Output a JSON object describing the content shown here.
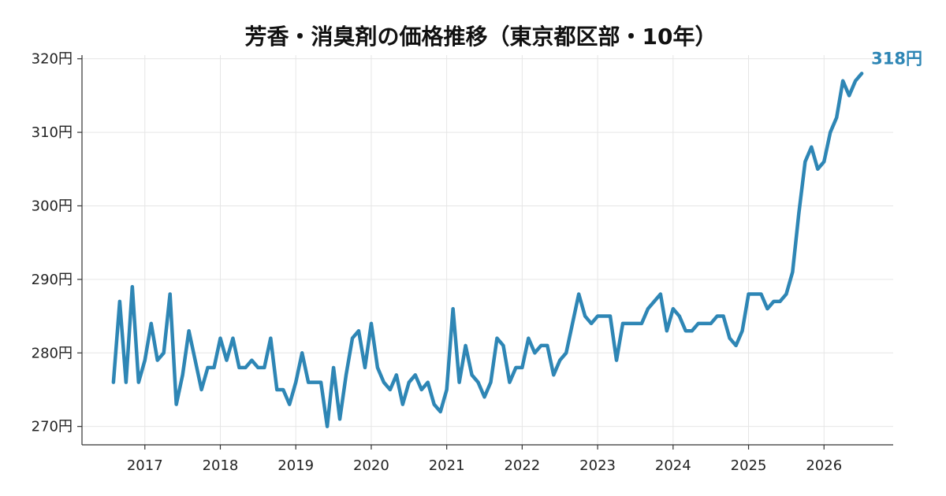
{
  "chart_data": {
    "type": "line",
    "title": "芳香・消臭剤の価格推移（東京都区部・10年）",
    "xlabel": "",
    "ylabel": "",
    "y_tick_labels": [
      "270円",
      "280円",
      "290円",
      "300円",
      "310円",
      "320円"
    ],
    "y_ticks": [
      270,
      280,
      290,
      300,
      310,
      320
    ],
    "ylim": [
      267.5,
      320.5
    ],
    "x_tick_labels": [
      "2017",
      "2018",
      "2019",
      "2020",
      "2021",
      "2022",
      "2023",
      "2024",
      "2025",
      "2026"
    ],
    "x_ticks": [
      "2017-01",
      "2018-01",
      "2019-01",
      "2020-01",
      "2021-01",
      "2022-01",
      "2023-01",
      "2024-01",
      "2025-01",
      "2026-01"
    ],
    "xlim": [
      "2016-03",
      "2026-12"
    ],
    "grid": true,
    "line_color": "#2e86b5",
    "end_label": "318円",
    "x": [
      "2016-08",
      "2016-09",
      "2016-10",
      "2016-11",
      "2016-12",
      "2017-01",
      "2017-02",
      "2017-03",
      "2017-04",
      "2017-05",
      "2017-06",
      "2017-07",
      "2017-08",
      "2017-09",
      "2017-10",
      "2017-11",
      "2017-12",
      "2018-01",
      "2018-02",
      "2018-03",
      "2018-04",
      "2018-05",
      "2018-06",
      "2018-07",
      "2018-08",
      "2018-09",
      "2018-10",
      "2018-11",
      "2018-12",
      "2019-01",
      "2019-02",
      "2019-03",
      "2019-04",
      "2019-05",
      "2019-06",
      "2019-07",
      "2019-08",
      "2019-09",
      "2019-10",
      "2019-11",
      "2019-12",
      "2020-01",
      "2020-02",
      "2020-03",
      "2020-04",
      "2020-05",
      "2020-06",
      "2020-07",
      "2020-08",
      "2020-09",
      "2020-10",
      "2020-11",
      "2020-12",
      "2021-01",
      "2021-02",
      "2021-03",
      "2021-04",
      "2021-05",
      "2021-06",
      "2021-07",
      "2021-08",
      "2021-09",
      "2021-10",
      "2021-11",
      "2021-12",
      "2022-01",
      "2022-02",
      "2022-03",
      "2022-04",
      "2022-05",
      "2022-06",
      "2022-07",
      "2022-08",
      "2022-09",
      "2022-10",
      "2022-11",
      "2022-12",
      "2023-01",
      "2023-02",
      "2023-03",
      "2023-04",
      "2023-05",
      "2023-06",
      "2023-07",
      "2023-08",
      "2023-09",
      "2023-10",
      "2023-11",
      "2023-12",
      "2024-01",
      "2024-02",
      "2024-03",
      "2024-04",
      "2024-05",
      "2024-06",
      "2024-07",
      "2024-08",
      "2024-09",
      "2024-10",
      "2024-11",
      "2024-12",
      "2025-01",
      "2025-02",
      "2025-03",
      "2025-04",
      "2025-05",
      "2025-06",
      "2025-07",
      "2025-08",
      "2025-09",
      "2025-10",
      "2025-11",
      "2025-12",
      "2026-01",
      "2026-02",
      "2026-03",
      "2026-04",
      "2026-05",
      "2026-06",
      "2026-07"
    ],
    "series": [
      {
        "values": [
          276,
          287,
          276,
          289,
          276,
          279,
          284,
          279,
          280,
          288,
          273,
          277,
          283,
          279,
          275,
          278,
          278,
          282,
          279,
          282,
          278,
          278,
          279,
          278,
          278,
          282,
          275,
          275,
          273,
          276,
          280,
          276,
          276,
          276,
          270,
          278,
          271,
          277,
          282,
          283,
          278,
          284,
          278,
          276,
          275,
          277,
          273,
          276,
          277,
          275,
          276,
          273,
          272,
          275,
          286,
          276,
          281,
          277,
          276,
          274,
          276,
          282,
          281,
          276,
          278,
          278,
          282,
          280,
          281,
          281,
          277,
          279,
          280,
          284,
          288,
          285,
          284,
          285,
          285,
          285,
          279,
          284,
          284,
          284,
          284,
          286,
          287,
          288,
          283,
          286,
          285,
          283,
          283,
          284,
          284,
          284,
          285,
          285,
          282,
          281,
          283,
          288,
          288,
          288,
          286,
          287,
          287,
          288,
          291,
          299,
          306,
          308,
          305,
          306,
          310,
          312,
          317,
          315,
          317,
          318
        ]
      }
    ]
  }
}
